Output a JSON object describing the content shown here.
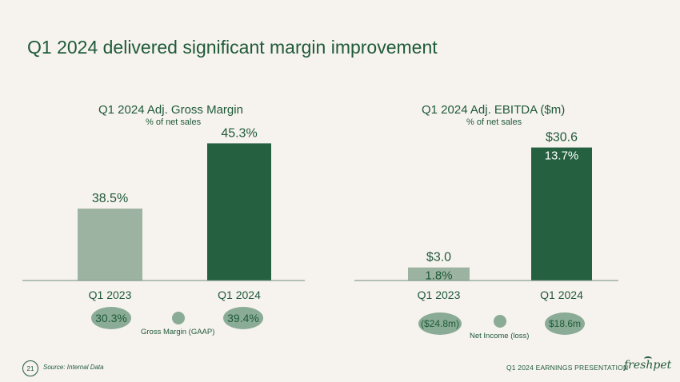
{
  "slide": {
    "title": "Q1 2024 delivered significant margin improvement",
    "page_number": "21",
    "source": "Source: Internal Data",
    "footer": "Q1 2024 EARNINGS PRESENTATION",
    "logo": "freshpet"
  },
  "colors": {
    "light_bar": "#9db3a2",
    "dark_bar": "#256040",
    "text": "#1f5a39",
    "pill": "#8aab96"
  },
  "chart_data": [
    {
      "type": "bar",
      "title": "Q1 2024 Adj. Gross Margin",
      "subtitle": "% of net sales",
      "categories": [
        "Q1 2023",
        "Q1 2024"
      ],
      "values": [
        38.5,
        45.3
      ],
      "value_labels": [
        "38.5%",
        "45.3%"
      ],
      "ylim": [
        31,
        46.5
      ],
      "legend": {
        "label": "Gross Margin (GAAP)",
        "values": [
          "30.3%",
          "39.4%"
        ]
      }
    },
    {
      "type": "bar",
      "title": "Q1 2024 Adj. EBITDA ($m)",
      "subtitle": "% of net sales",
      "categories": [
        "Q1 2023",
        "Q1 2024"
      ],
      "values": [
        3.0,
        30.6
      ],
      "value_labels": [
        "$3.0",
        "$30.6"
      ],
      "inner_labels": [
        "1.8%",
        "13.7%"
      ],
      "ylim": [
        0,
        34.2
      ],
      "legend": {
        "label": "Net Income (loss)",
        "values": [
          "($24.8m)",
          "$18.6m"
        ]
      }
    }
  ]
}
